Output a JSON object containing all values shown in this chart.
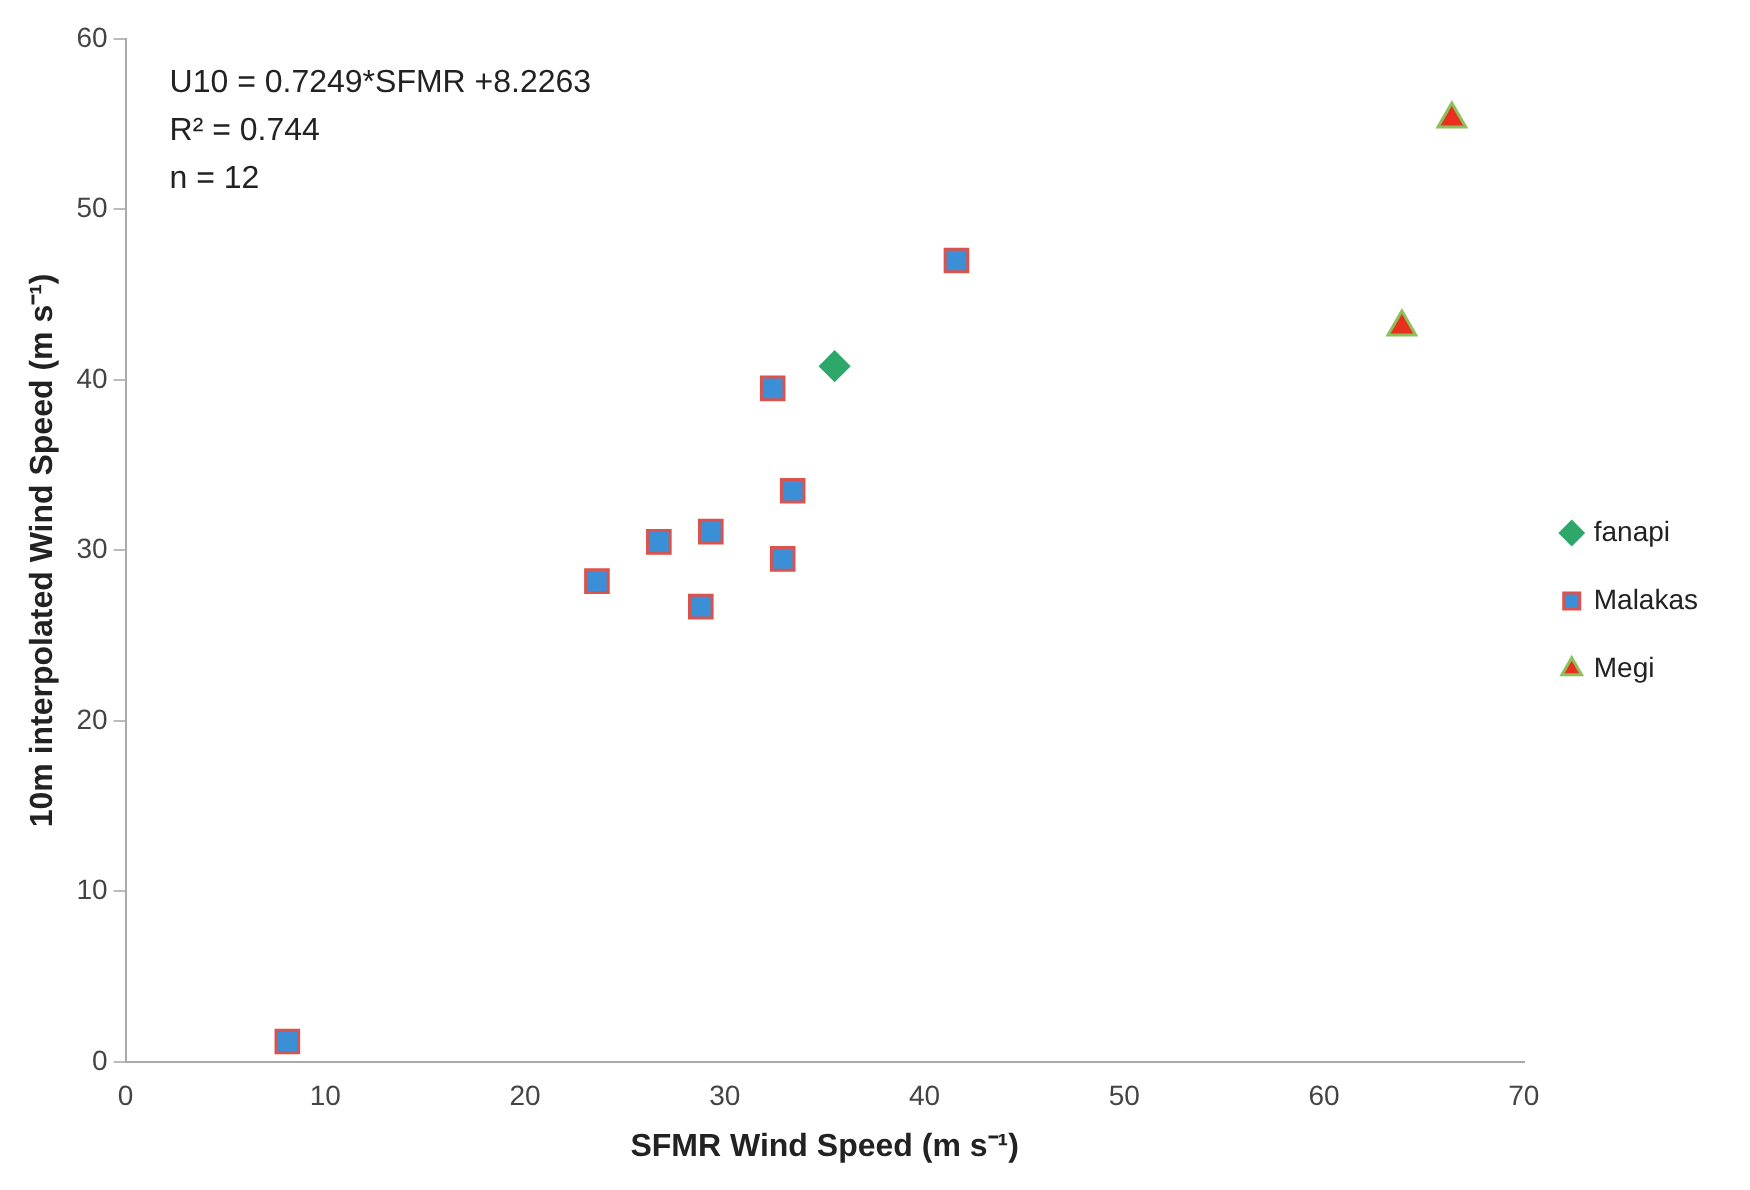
{
  "chart_data": {
    "type": "scatter",
    "xlabel": "SFMR Wind Speed (m s⁻¹)",
    "ylabel": "10m interpolated Wind Speed (m s⁻¹)",
    "xlim": [
      0,
      70
    ],
    "xticks": [
      0,
      10,
      20,
      30,
      40,
      50,
      60,
      70
    ],
    "ylim": [
      0,
      60
    ],
    "yticks": [
      0,
      10,
      20,
      30,
      40,
      50,
      60
    ],
    "grid": false,
    "legend": "right",
    "annotations": [
      "U10 = 0.7249*SFMR +8.2263",
      "R² = 0.744",
      "n = 12"
    ],
    "series": [
      {
        "name": "fanapi",
        "color": "#2ea86a",
        "marker": "diamond",
        "x": [
          35.5
        ],
        "values": [
          40.8
        ]
      },
      {
        "name": "Malakas",
        "color": "#3a8fd6",
        "marker": "square",
        "x": [
          8.1,
          23.6,
          26.7,
          28.8,
          29.3,
          32.4,
          32.9,
          33.4,
          41.6
        ],
        "values": [
          1.2,
          28.2,
          30.5,
          26.7,
          31.1,
          39.5,
          29.5,
          33.5,
          47.0
        ]
      },
      {
        "name": "Megi",
        "color": "#e8301e",
        "marker": "triangle",
        "x": [
          63.9,
          66.4
        ],
        "values": [
          43.1,
          55.3
        ]
      }
    ]
  }
}
